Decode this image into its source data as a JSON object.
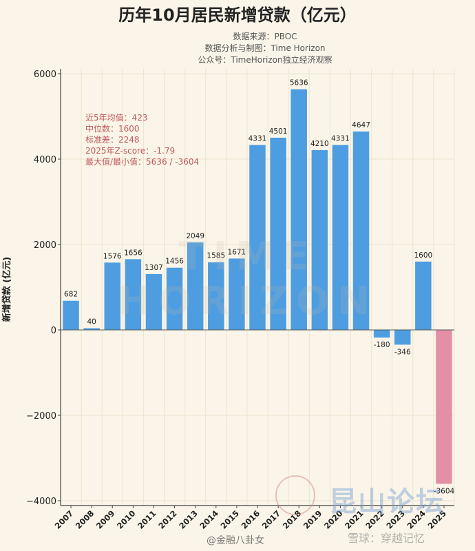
{
  "chart_data": {
    "type": "bar",
    "title": "历年10月居民新增贷款（亿元）",
    "subtitle_lines": [
      "数据来源：PBOC",
      "数据分析与制图：Time Horizon",
      "公众号：TimeHorizon独立经济观察"
    ],
    "ylabel": "新增贷款 (亿元)",
    "xlabel": "",
    "ylim": [
      -4000,
      6000
    ],
    "yticks": [
      6000,
      4000,
      2000,
      0,
      -2000,
      -4000
    ],
    "ytick_labels": [
      "6000",
      "4000",
      "2000",
      "0",
      "−2000",
      "−4000"
    ],
    "grid": true,
    "categories": [
      "2007",
      "2008",
      "2009",
      "2010",
      "2011",
      "2012",
      "2013",
      "2014",
      "2015",
      "2016",
      "2017",
      "2018",
      "2019",
      "2020",
      "2021",
      "2022",
      "2023",
      "2024",
      "2025"
    ],
    "values": [
      682,
      40,
      1576,
      1656,
      1307,
      1456,
      2049,
      1585,
      1671,
      4331,
      4501,
      5636,
      4210,
      4331,
      4647,
      -180,
      -346,
      1600,
      -3604
    ],
    "data_labels": [
      "682",
      "40",
      "1576",
      "1656",
      "1307",
      "1456",
      "2049",
      "1585",
      "1671",
      "4331",
      "4501",
      "5636",
      "4210",
      "4331",
      "4647",
      "-180",
      "-346",
      "1600",
      "-3604"
    ],
    "highlight_index": 18,
    "colors": {
      "bar": "#4d9de0",
      "highlight": "#e58fa6",
      "stats_text": "#c0595f"
    },
    "stats": [
      "近5年均值：423",
      "中位数：1600",
      "标准差：2248",
      "2025年Z-score：-1.79",
      "最大值/最小值：5636 / -3604"
    ]
  },
  "watermarks": {
    "background": "TIME HORIZON",
    "bottom_left": "@金融八卦女",
    "bottom_right": "雪球：穿越记忆",
    "forum": "昆山论坛"
  }
}
